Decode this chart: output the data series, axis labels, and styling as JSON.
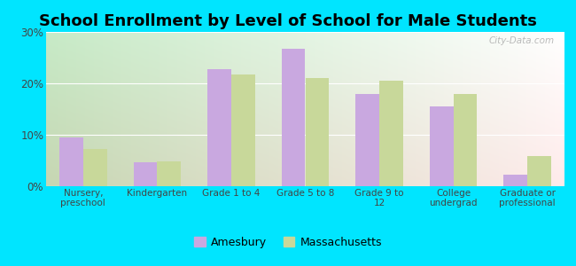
{
  "title": "School Enrollment by Level of School for Male Students",
  "categories": [
    "Nursery,\npreschool",
    "Kindergarten",
    "Grade 1 to 4",
    "Grade 5 to 8",
    "Grade 9 to\n12",
    "College\nundergrad",
    "Graduate or\nprofessional"
  ],
  "amesbury": [
    9.5,
    4.7,
    22.7,
    26.7,
    18.0,
    15.5,
    2.2
  ],
  "massachusetts": [
    7.2,
    4.9,
    21.8,
    21.0,
    20.6,
    18.0,
    5.8
  ],
  "amesbury_color": "#c9a8e0",
  "massachusetts_color": "#c8d89a",
  "background_outer": "#00e5ff",
  "background_inner_left": "#c8e8c8",
  "background_inner_right": "#e8f4f4",
  "ylim": [
    0,
    30
  ],
  "yticks": [
    0,
    10,
    20,
    30
  ],
  "ytick_labels": [
    "0%",
    "10%",
    "20%",
    "30%"
  ],
  "bar_width": 0.32,
  "title_fontsize": 13,
  "legend_labels": [
    "Amesbury",
    "Massachusetts"
  ],
  "watermark": "City-Data.com"
}
